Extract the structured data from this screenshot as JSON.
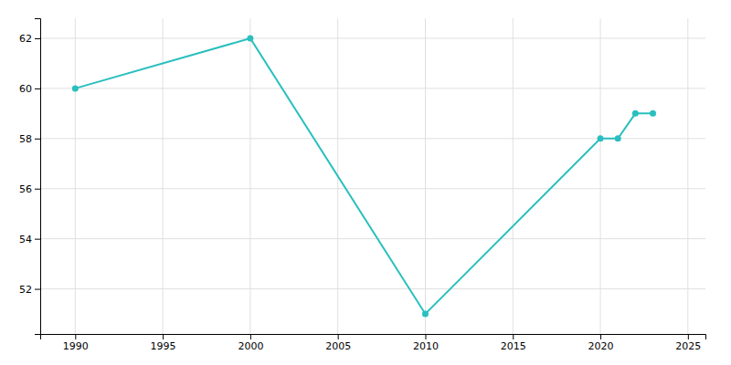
{
  "chart_data": {
    "type": "line",
    "x": [
      1990,
      2000,
      2010,
      2020,
      2021,
      2022,
      2023
    ],
    "values": [
      60,
      62,
      51,
      58,
      58,
      59,
      59
    ],
    "color": "#2abfbf",
    "marker": "circle",
    "xlim": [
      1988,
      2026
    ],
    "ylim": [
      50.2,
      62.8
    ],
    "xticks": [
      1990,
      1995,
      2000,
      2005,
      2010,
      2015,
      2020,
      2025
    ],
    "yticks": [
      52,
      54,
      56,
      58,
      60,
      62
    ],
    "grid": true
  }
}
